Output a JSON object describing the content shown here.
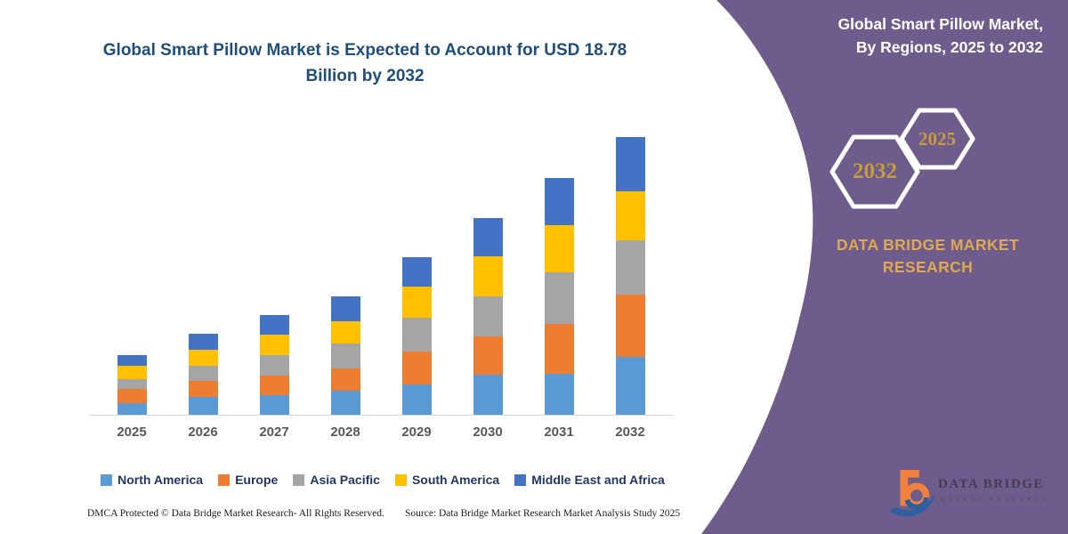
{
  "header": {
    "title": "Global Smart Pillow Market is Expected to Account for USD 18.78 Billion by 2032"
  },
  "chart_data": {
    "type": "bar",
    "stacked": true,
    "title": "Global Smart Pillow Market is Expected to Account for USD 18.78 Billion by 2032",
    "unit": "USD Billion",
    "categories": [
      "2025",
      "2026",
      "2027",
      "2028",
      "2029",
      "2030",
      "2031",
      "2032"
    ],
    "series": [
      {
        "name": "North America",
        "color": "#5B9BD5",
        "values": [
          0.8,
          1.2,
          1.3,
          1.65,
          2.05,
          2.7,
          2.8,
          3.9
        ]
      },
      {
        "name": "Europe",
        "color": "#ED7D31",
        "values": [
          0.95,
          1.1,
          1.3,
          1.5,
          2.2,
          2.6,
          3.4,
          4.2
        ]
      },
      {
        "name": "Asia Pacific",
        "color": "#A5A5A5",
        "values": [
          0.65,
          1.0,
          1.4,
          1.7,
          2.3,
          2.7,
          3.5,
          3.7
        ]
      },
      {
        "name": "South America",
        "color": "#FFC000",
        "values": [
          0.9,
          1.1,
          1.4,
          1.5,
          2.1,
          2.7,
          3.2,
          3.3
        ]
      },
      {
        "name": "Middle East and Africa",
        "color": "#4472C4",
        "values": [
          0.7,
          1.1,
          1.3,
          1.7,
          2.0,
          2.6,
          3.2,
          3.7
        ]
      }
    ],
    "totals": [
      4.0,
      5.5,
      6.7,
      8.05,
      10.65,
      13.3,
      16.1,
      18.8
    ],
    "ylim": [
      0,
      19.5
    ],
    "gridlines": false,
    "y_axis_visible": false,
    "legend_position": "bottom"
  },
  "right_panel": {
    "title": "Global Smart Pillow Market, By Regions, 2025 to 2032",
    "hexagons": [
      {
        "label": "2032"
      },
      {
        "label": "2025"
      }
    ],
    "brand_line1": "DATA BRIDGE MARKET",
    "brand_line2": "RESEARCH",
    "background_color": "#6D5C8C",
    "accent_gold": "#DFA851"
  },
  "footer": {
    "left": "DMCA Protected © Data Bridge Market Research-  All Rights Reserved.",
    "right": "Source: Data Bridge Market Research  Market Analysis Study 2025"
  },
  "logo": {
    "line1": "DATA BRIDGE",
    "line2": "MARKET RESEARCH"
  }
}
